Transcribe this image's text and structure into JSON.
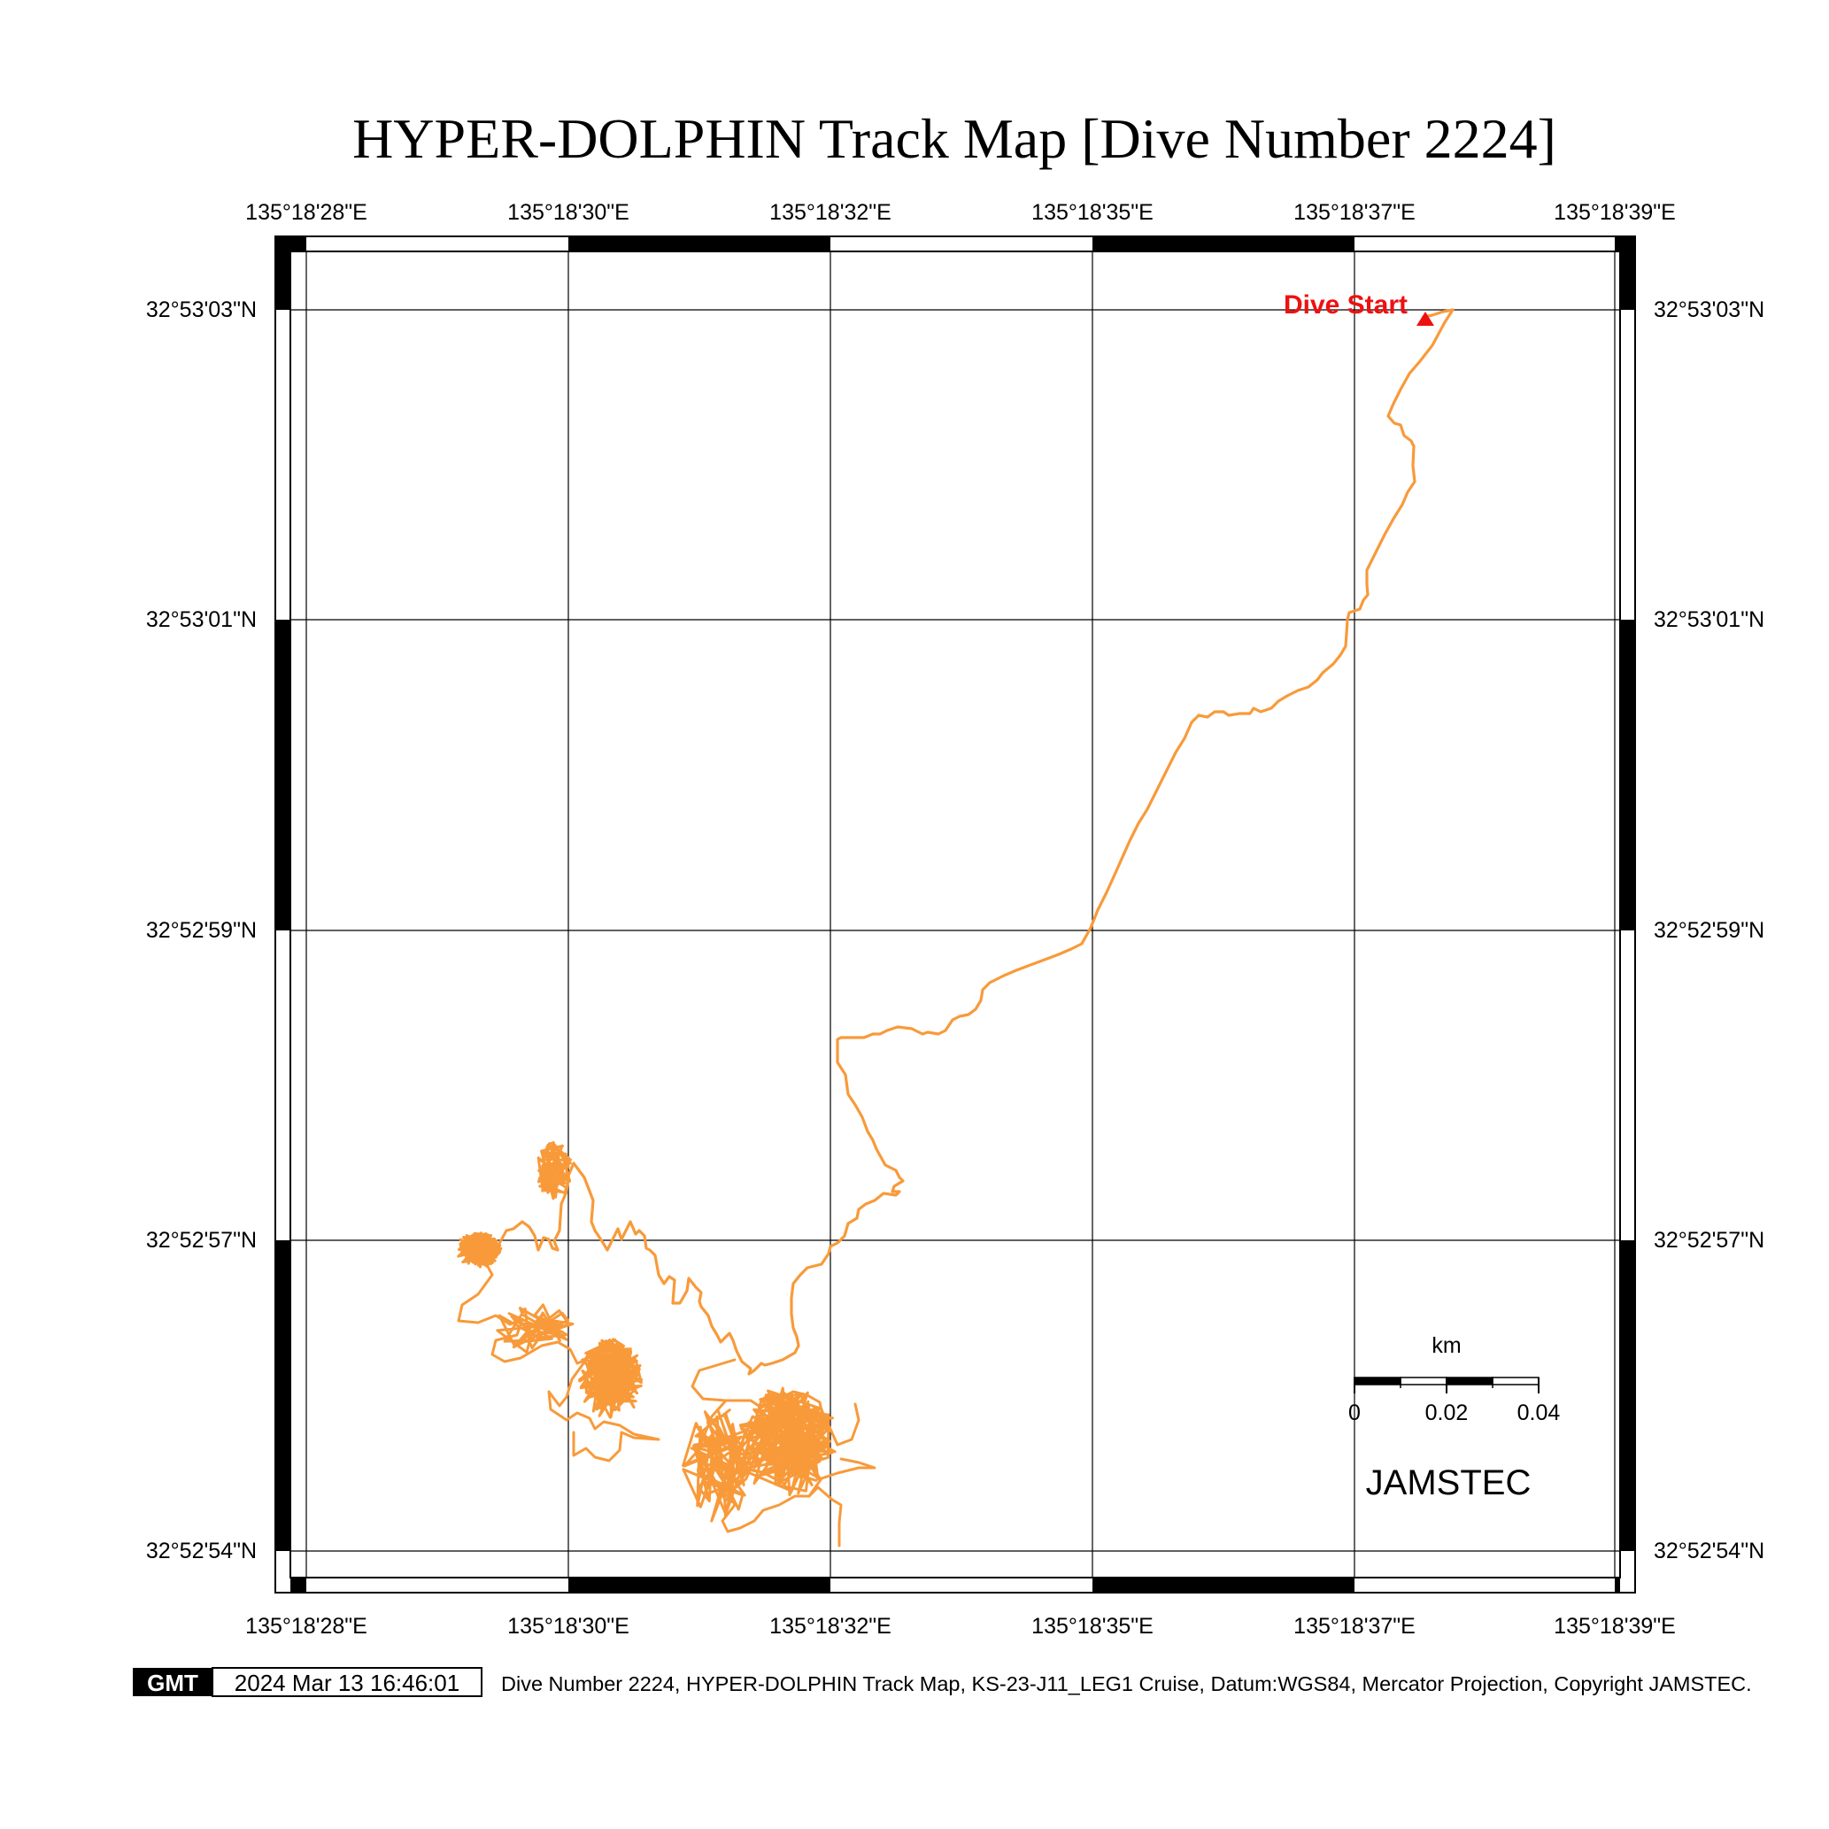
{
  "title": "HYPER-DOLPHIN Track Map [Dive Number 2224]",
  "map": {
    "lon_labels": [
      "135°18'28\"E",
      "135°18'30\"E",
      "135°18'32\"E",
      "135°18'35\"E",
      "135°18'37\"E",
      "135°18'39\"E"
    ],
    "lat_labels": [
      "32°53'03\"N",
      "32°53'01\"N",
      "32°52'59\"N",
      "32°52'57\"N",
      "32°52'54\"N"
    ],
    "track_color": "#f89a3a",
    "start_marker_color": "#ee1111",
    "start_label": "Dive Start",
    "logo": "JAMSTEC"
  },
  "scale_bar": {
    "unit": "km",
    "labels": [
      "0",
      "0.02",
      "0.04"
    ]
  },
  "footer": {
    "gmt_badge": "GMT",
    "timestamp": "2024 Mar 13 16:46:01",
    "caption": "Dive Number 2224, HYPER-DOLPHIN Track Map, KS-23-J11_LEG1 Cruise, Datum:WGS84, Mercator Projection, Copyright JAMSTEC."
  }
}
